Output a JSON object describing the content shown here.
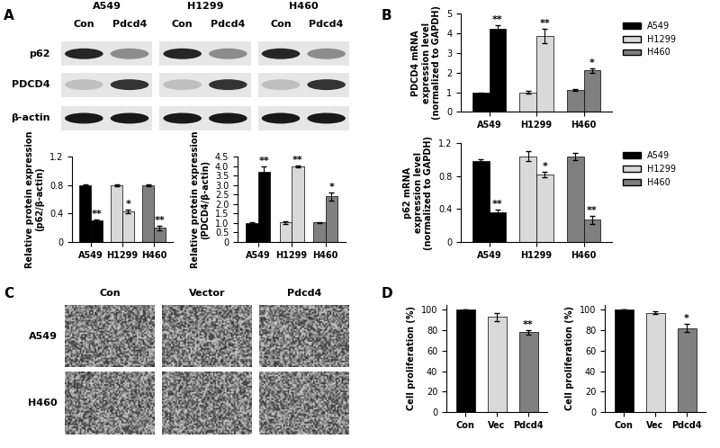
{
  "panel_labels": [
    "A",
    "B",
    "C",
    "D"
  ],
  "blot": {
    "cell_lines": [
      "A549",
      "H1299",
      "H460"
    ],
    "lanes": [
      "Con",
      "Pdcd4"
    ],
    "proteins": [
      "p62",
      "PDCD4",
      "β-actin"
    ]
  },
  "micrographs": {
    "columns": [
      "Con",
      "Vector",
      "Pdcd4"
    ],
    "rows": [
      "A549",
      "H460"
    ]
  },
  "chart_data": [
    {
      "type": "grouped_bar",
      "ylabel": "Relative protein expression\n(p62/β-actin)",
      "ylim": [
        0,
        1.2
      ],
      "yticks": [
        0,
        0.4,
        0.8,
        1.2
      ],
      "series": [
        {
          "name": "A549",
          "color": "#000000",
          "values": [
            0.8,
            0.3
          ],
          "errors": [
            0.01,
            0.02
          ],
          "significance": [
            null,
            "**"
          ]
        },
        {
          "name": "H1299",
          "color": "#d9d9d9",
          "values": [
            0.8,
            0.43
          ],
          "errors": [
            0.01,
            0.03
          ],
          "significance": [
            null,
            "*"
          ]
        },
        {
          "name": "H460",
          "color": "#808080",
          "values": [
            0.8,
            0.2
          ],
          "errors": [
            0.01,
            0.03
          ],
          "significance": [
            null,
            "**"
          ]
        }
      ]
    },
    {
      "type": "grouped_bar",
      "ylabel": "Relative protein expression\n(PDCD4/β-actin)",
      "ylim": [
        0,
        4.5
      ],
      "yticks": [
        0,
        0.5,
        {
          "value": 1,
          "label": "1.0"
        },
        1.5,
        {
          "value": 2,
          "label": "2.0"
        },
        2.5,
        {
          "value": 3,
          "label": "3.0"
        },
        3.5,
        {
          "value": 4,
          "label": "4.0"
        },
        4.5
      ],
      "series": [
        {
          "name": "A549",
          "color": "#000000",
          "values": [
            1.0,
            3.7
          ],
          "errors": [
            0.03,
            0.3
          ],
          "significance": [
            null,
            "**"
          ]
        },
        {
          "name": "H1299",
          "color": "#d9d9d9",
          "values": [
            1.03,
            4.0
          ],
          "errors": [
            0.08,
            0.05
          ],
          "significance": [
            null,
            "**"
          ]
        },
        {
          "name": "H460",
          "color": "#808080",
          "values": [
            1.02,
            2.4
          ],
          "errors": [
            0.03,
            0.2
          ],
          "significance": [
            null,
            "*"
          ]
        }
      ]
    },
    {
      "type": "grouped_bar",
      "ylabel": "PDCD4 mRNA\nexpression level\n(normalized to GAPDH)",
      "ylim": [
        0,
        5
      ],
      "yticks": [
        0,
        1,
        2,
        3,
        4,
        5
      ],
      "legend": "upper right",
      "series": [
        {
          "name": "A549",
          "color": "#000000",
          "values": [
            0.97,
            4.2
          ],
          "errors": [
            0.03,
            0.2
          ],
          "significance": [
            null,
            "**"
          ]
        },
        {
          "name": "H1299",
          "color": "#d9d9d9",
          "values": [
            1.0,
            3.85
          ],
          "errors": [
            0.06,
            0.35
          ],
          "significance": [
            null,
            "**"
          ]
        },
        {
          "name": "H460",
          "color": "#808080",
          "values": [
            1.1,
            2.1
          ],
          "errors": [
            0.05,
            0.12
          ],
          "significance": [
            null,
            "*"
          ]
        }
      ]
    },
    {
      "type": "grouped_bar",
      "ylabel": "p62 mRNA\nexpression level\n(normalized to GAPDH)",
      "ylim": [
        0,
        1.2
      ],
      "yticks": [
        0,
        0.4,
        0.8,
        1.2
      ],
      "legend": "upper right",
      "series": [
        {
          "name": "A549",
          "color": "#000000",
          "values": [
            0.98,
            0.36
          ],
          "errors": [
            0.03,
            0.03
          ],
          "significance": [
            null,
            "**"
          ]
        },
        {
          "name": "H1299",
          "color": "#d9d9d9",
          "values": [
            1.04,
            0.82
          ],
          "errors": [
            0.06,
            0.03
          ],
          "significance": [
            null,
            "*"
          ]
        },
        {
          "name": "H460",
          "color": "#808080",
          "values": [
            1.04,
            0.27
          ],
          "errors": [
            0.04,
            0.05
          ],
          "significance": [
            null,
            "**"
          ]
        }
      ]
    },
    {
      "type": "bar",
      "ylabel": "Cell proliferation (%)",
      "categories": [
        "Con",
        "Vec",
        "Pdcd4"
      ],
      "values": [
        100,
        93,
        78
      ],
      "errors": [
        0,
        4,
        2
      ],
      "colors": [
        "#000000",
        "#d9d9d9",
        "#808080"
      ],
      "significance": [
        null,
        null,
        "**"
      ],
      "ylim": [
        0,
        105
      ],
      "yticks": [
        0,
        20,
        40,
        60,
        80,
        100
      ]
    },
    {
      "type": "bar",
      "ylabel": "Cell proliferation (%)",
      "categories": [
        "Con",
        "Vec",
        "Pdcd4"
      ],
      "values": [
        100,
        97,
        82
      ],
      "errors": [
        0,
        1.5,
        4
      ],
      "colors": [
        "#000000",
        "#d9d9d9",
        "#808080"
      ],
      "significance": [
        null,
        null,
        "*"
      ],
      "ylim": [
        0,
        105
      ],
      "yticks": [
        0,
        20,
        40,
        60,
        80,
        100
      ]
    }
  ]
}
